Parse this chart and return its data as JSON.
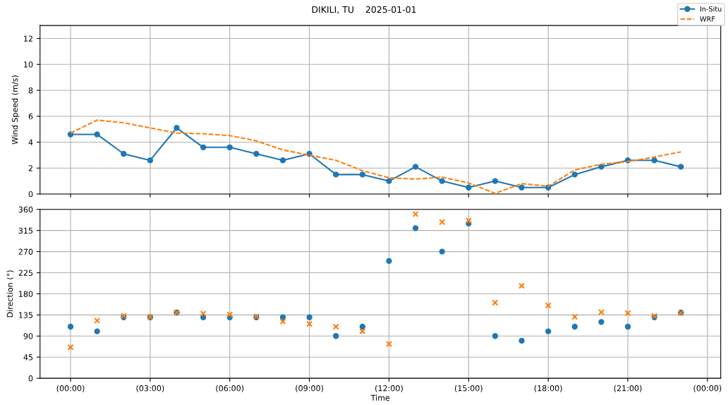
{
  "chart_data": [
    {
      "type": "line",
      "title": "DIKILI, TU    2025-01-01",
      "ylabel": "Wind Speed (m/s)",
      "legend": "top right",
      "grid": true,
      "tick_labels": "y",
      "x": [
        "2025-01-01T00:00",
        "2025-01-01T01:00",
        "2025-01-01T02:00",
        "2025-01-01T03:00",
        "2025-01-01T04:00",
        "2025-01-01T05:00",
        "2025-01-01T06:00",
        "2025-01-01T07:00",
        "2025-01-01T08:00",
        "2025-01-01T09:00",
        "2025-01-01T10:00",
        "2025-01-01T11:00",
        "2025-01-01T12:00",
        "2025-01-01T13:00",
        "2025-01-01T14:00",
        "2025-01-01T15:00",
        "2025-01-01T16:00",
        "2025-01-01T17:00",
        "2025-01-01T18:00",
        "2025-01-01T19:00",
        "2025-01-01T20:00",
        "2025-01-01T21:00",
        "2025-01-01T22:00",
        "2025-01-01T23:00"
      ],
      "xlim": [
        "2024-12-31T22:51",
        "2025-01-02T00:30"
      ],
      "xticks": [
        {
          "value": "2025-01-01T00:00",
          "label": null
        },
        {
          "value": "2025-01-01T03:00",
          "label": null
        },
        {
          "value": "2025-01-01T06:00",
          "label": null
        },
        {
          "value": "2025-01-01T09:00",
          "label": null
        },
        {
          "value": "2025-01-01T12:00",
          "label": null
        },
        {
          "value": "2025-01-01T15:00",
          "label": null
        },
        {
          "value": "2025-01-01T18:00",
          "label": null
        },
        {
          "value": "2025-01-01T21:00",
          "label": null
        },
        {
          "value": "2025-01-02T00:00",
          "label": null
        }
      ],
      "ylim": [
        0,
        13
      ],
      "yticks": [
        0,
        2,
        4,
        6,
        8,
        10,
        12
      ],
      "series": [
        {
          "name": "In-Situ",
          "color": "#1f77b4",
          "marker": "circle",
          "line_style": "solid",
          "values": [
            4.6,
            4.6,
            3.1,
            2.6,
            5.1,
            3.6,
            3.6,
            3.1,
            2.6,
            3.1,
            1.5,
            1.5,
            1.0,
            2.1,
            1.0,
            0.5,
            1.0,
            0.5,
            0.5,
            1.5,
            2.1,
            2.6,
            2.6,
            2.1
          ]
        },
        {
          "name": "WRF",
          "color": "#ff7f0e",
          "marker": "none",
          "line_style": "dashed",
          "values": [
            4.7,
            5.7,
            5.5,
            5.1,
            4.7,
            4.65,
            4.5,
            4.1,
            3.4,
            3.0,
            2.6,
            1.8,
            1.25,
            1.15,
            1.3,
            0.85,
            0.05,
            0.8,
            0.6,
            1.85,
            2.3,
            2.5,
            2.85,
            3.25
          ]
        }
      ]
    },
    {
      "type": "scatter",
      "xlabel": "Time",
      "ylabel": "Direction (°)",
      "grid": true,
      "x": [
        "2025-01-01T00:00",
        "2025-01-01T01:00",
        "2025-01-01T02:00",
        "2025-01-01T03:00",
        "2025-01-01T04:00",
        "2025-01-01T05:00",
        "2025-01-01T06:00",
        "2025-01-01T07:00",
        "2025-01-01T08:00",
        "2025-01-01T09:00",
        "2025-01-01T10:00",
        "2025-01-01T11:00",
        "2025-01-01T12:00",
        "2025-01-01T13:00",
        "2025-01-01T14:00",
        "2025-01-01T15:00",
        "2025-01-01T16:00",
        "2025-01-01T17:00",
        "2025-01-01T18:00",
        "2025-01-01T19:00",
        "2025-01-01T20:00",
        "2025-01-01T21:00",
        "2025-01-01T22:00",
        "2025-01-01T23:00"
      ],
      "xlim": [
        "2024-12-31T22:51",
        "2025-01-02T00:30"
      ],
      "xticks": [
        {
          "value": "2025-01-01T00:00",
          "label": "(00:00)"
        },
        {
          "value": "2025-01-01T03:00",
          "label": "(03:00)"
        },
        {
          "value": "2025-01-01T06:00",
          "label": "(06:00)"
        },
        {
          "value": "2025-01-01T09:00",
          "label": "(09:00)"
        },
        {
          "value": "2025-01-01T12:00",
          "label": "(12:00)"
        },
        {
          "value": "2025-01-01T15:00",
          "label": "(15:00)"
        },
        {
          "value": "2025-01-01T18:00",
          "label": "(18:00)"
        },
        {
          "value": "2025-01-01T21:00",
          "label": "(21:00)"
        },
        {
          "value": "2025-01-02T00:00",
          "label": "(00:00)"
        }
      ],
      "ylim": [
        0,
        360
      ],
      "yticks": [
        0,
        45,
        90,
        135,
        180,
        225,
        270,
        315,
        360
      ],
      "series": [
        {
          "color": "#1f77b4",
          "marker": "circle",
          "values": [
            110,
            100,
            130,
            130,
            140,
            130,
            130,
            130,
            130,
            130,
            90,
            110,
            250,
            320,
            270,
            330,
            90,
            80,
            100,
            110,
            120,
            110,
            130,
            140
          ]
        },
        {
          "color": "#ff7f0e",
          "marker": "cross",
          "values": [
            66,
            123,
            133,
            131,
            140,
            138,
            136,
            132,
            121,
            116,
            110,
            100,
            73,
            350,
            333,
            336,
            161,
            197,
            155,
            131,
            141,
            139,
            133,
            139
          ]
        }
      ]
    }
  ]
}
